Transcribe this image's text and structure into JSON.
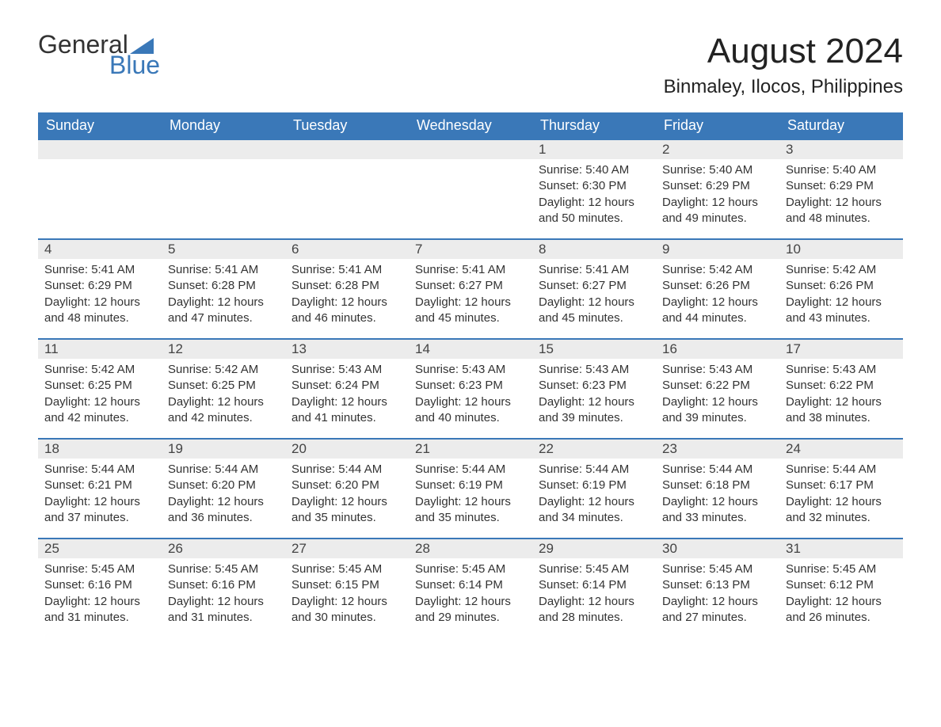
{
  "logo": {
    "word1": "General",
    "word2": "Blue",
    "flag_color": "#3a78b8"
  },
  "title": "August 2024",
  "location": "Binmaley, Ilocos, Philippines",
  "colors": {
    "header_bg": "#3a78b8",
    "header_text": "#ffffff",
    "daynum_bg": "#ececec",
    "row_divider": "#3a78b8",
    "body_text": "#333333",
    "page_bg": "#ffffff"
  },
  "day_headers": [
    "Sunday",
    "Monday",
    "Tuesday",
    "Wednesday",
    "Thursday",
    "Friday",
    "Saturday"
  ],
  "first_weekday_index": 4,
  "days_in_month": 31,
  "days": {
    "1": {
      "sunrise": "5:40 AM",
      "sunset": "6:30 PM",
      "daylight": "12 hours and 50 minutes."
    },
    "2": {
      "sunrise": "5:40 AM",
      "sunset": "6:29 PM",
      "daylight": "12 hours and 49 minutes."
    },
    "3": {
      "sunrise": "5:40 AM",
      "sunset": "6:29 PM",
      "daylight": "12 hours and 48 minutes."
    },
    "4": {
      "sunrise": "5:41 AM",
      "sunset": "6:29 PM",
      "daylight": "12 hours and 48 minutes."
    },
    "5": {
      "sunrise": "5:41 AM",
      "sunset": "6:28 PM",
      "daylight": "12 hours and 47 minutes."
    },
    "6": {
      "sunrise": "5:41 AM",
      "sunset": "6:28 PM",
      "daylight": "12 hours and 46 minutes."
    },
    "7": {
      "sunrise": "5:41 AM",
      "sunset": "6:27 PM",
      "daylight": "12 hours and 45 minutes."
    },
    "8": {
      "sunrise": "5:41 AM",
      "sunset": "6:27 PM",
      "daylight": "12 hours and 45 minutes."
    },
    "9": {
      "sunrise": "5:42 AM",
      "sunset": "6:26 PM",
      "daylight": "12 hours and 44 minutes."
    },
    "10": {
      "sunrise": "5:42 AM",
      "sunset": "6:26 PM",
      "daylight": "12 hours and 43 minutes."
    },
    "11": {
      "sunrise": "5:42 AM",
      "sunset": "6:25 PM",
      "daylight": "12 hours and 42 minutes."
    },
    "12": {
      "sunrise": "5:42 AM",
      "sunset": "6:25 PM",
      "daylight": "12 hours and 42 minutes."
    },
    "13": {
      "sunrise": "5:43 AM",
      "sunset": "6:24 PM",
      "daylight": "12 hours and 41 minutes."
    },
    "14": {
      "sunrise": "5:43 AM",
      "sunset": "6:23 PM",
      "daylight": "12 hours and 40 minutes."
    },
    "15": {
      "sunrise": "5:43 AM",
      "sunset": "6:23 PM",
      "daylight": "12 hours and 39 minutes."
    },
    "16": {
      "sunrise": "5:43 AM",
      "sunset": "6:22 PM",
      "daylight": "12 hours and 39 minutes."
    },
    "17": {
      "sunrise": "5:43 AM",
      "sunset": "6:22 PM",
      "daylight": "12 hours and 38 minutes."
    },
    "18": {
      "sunrise": "5:44 AM",
      "sunset": "6:21 PM",
      "daylight": "12 hours and 37 minutes."
    },
    "19": {
      "sunrise": "5:44 AM",
      "sunset": "6:20 PM",
      "daylight": "12 hours and 36 minutes."
    },
    "20": {
      "sunrise": "5:44 AM",
      "sunset": "6:20 PM",
      "daylight": "12 hours and 35 minutes."
    },
    "21": {
      "sunrise": "5:44 AM",
      "sunset": "6:19 PM",
      "daylight": "12 hours and 35 minutes."
    },
    "22": {
      "sunrise": "5:44 AM",
      "sunset": "6:19 PM",
      "daylight": "12 hours and 34 minutes."
    },
    "23": {
      "sunrise": "5:44 AM",
      "sunset": "6:18 PM",
      "daylight": "12 hours and 33 minutes."
    },
    "24": {
      "sunrise": "5:44 AM",
      "sunset": "6:17 PM",
      "daylight": "12 hours and 32 minutes."
    },
    "25": {
      "sunrise": "5:45 AM",
      "sunset": "6:16 PM",
      "daylight": "12 hours and 31 minutes."
    },
    "26": {
      "sunrise": "5:45 AM",
      "sunset": "6:16 PM",
      "daylight": "12 hours and 31 minutes."
    },
    "27": {
      "sunrise": "5:45 AM",
      "sunset": "6:15 PM",
      "daylight": "12 hours and 30 minutes."
    },
    "28": {
      "sunrise": "5:45 AM",
      "sunset": "6:14 PM",
      "daylight": "12 hours and 29 minutes."
    },
    "29": {
      "sunrise": "5:45 AM",
      "sunset": "6:14 PM",
      "daylight": "12 hours and 28 minutes."
    },
    "30": {
      "sunrise": "5:45 AM",
      "sunset": "6:13 PM",
      "daylight": "12 hours and 27 minutes."
    },
    "31": {
      "sunrise": "5:45 AM",
      "sunset": "6:12 PM",
      "daylight": "12 hours and 26 minutes."
    }
  },
  "labels": {
    "sunrise": "Sunrise:",
    "sunset": "Sunset:",
    "daylight": "Daylight:"
  }
}
